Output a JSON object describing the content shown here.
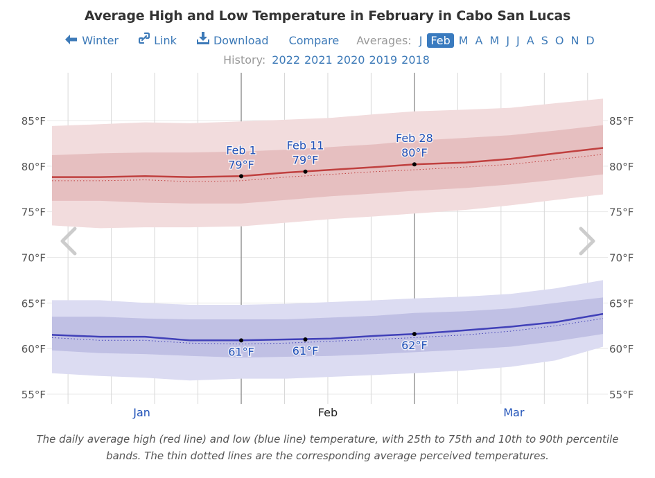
{
  "header": {
    "title": "Average High and Low Temperature in February in Cabo San Lucas"
  },
  "nav": {
    "back_label": "Winter",
    "back_icon": "arrow-left-icon",
    "link_label": "Link",
    "link_icon": "link-icon",
    "download_label": "Download",
    "download_icon": "download-icon",
    "compare_label": "Compare",
    "averages_label": "Averages:",
    "months": [
      "J",
      "Feb",
      "M",
      "A",
      "M",
      "J",
      "J",
      "A",
      "S",
      "O",
      "N",
      "D"
    ],
    "active_month_index": 1
  },
  "history": {
    "label": "History:",
    "years": [
      "2022",
      "2021",
      "2020",
      "2019",
      "2018"
    ]
  },
  "colors": {
    "accent": "#3a7bbf",
    "high_line": "#c0403f",
    "high_band_inner": "#e6bfc0",
    "high_band_outer": "#f2dcdd",
    "low_line": "#4040b8",
    "low_band_inner": "#c0c0e4",
    "low_band_outer": "#dcdcf2",
    "annotation": "#2052b8"
  },
  "chart_data": {
    "type": "area",
    "title": "Average High and Low Temperature in February in Cabo San Lucas",
    "xlabel": "",
    "ylabel": "",
    "x_unit": "days relative to Feb 1",
    "xlim": [
      -29.5,
      56.4
    ],
    "ylim": [
      53.5,
      88.5
    ],
    "y_ticks": [
      55,
      60,
      65,
      70,
      75,
      80,
      85
    ],
    "y_tick_labels": [
      "55°F",
      "60°F",
      "65°F",
      "70°F",
      "75°F",
      "80°F",
      "85°F"
    ],
    "month_labels": [
      {
        "label": "Jan",
        "day": -15.5,
        "highlight": false
      },
      {
        "label": "Feb",
        "day": 13.5,
        "highlight": true
      },
      {
        "label": "Mar",
        "day": 42.5,
        "highlight": false
      }
    ],
    "month_boundaries": [
      0,
      27
    ],
    "grid": true,
    "x": [
      -29.5,
      -22,
      -15,
      -8,
      0,
      7,
      14,
      21,
      27,
      35,
      42,
      49,
      56.4
    ],
    "series": [
      {
        "name": "High p90",
        "values": [
          84.4,
          84.6,
          84.8,
          84.7,
          84.9,
          85.1,
          85.3,
          85.7,
          86.0,
          86.2,
          86.4,
          86.9,
          87.4
        ]
      },
      {
        "name": "High p75",
        "values": [
          81.2,
          81.4,
          81.5,
          81.5,
          81.6,
          81.8,
          82.1,
          82.4,
          82.8,
          83.1,
          83.4,
          83.9,
          84.5
        ]
      },
      {
        "name": "Average High",
        "values": [
          78.8,
          78.8,
          78.9,
          78.8,
          78.9,
          79.3,
          79.6,
          79.9,
          80.2,
          80.4,
          80.8,
          81.4,
          82.0
        ]
      },
      {
        "name": "Perceived High",
        "values": [
          78.4,
          78.4,
          78.5,
          78.3,
          78.4,
          78.8,
          79.1,
          79.4,
          79.6,
          79.9,
          80.2,
          80.7,
          81.3
        ]
      },
      {
        "name": "High p25",
        "values": [
          76.2,
          76.2,
          76.0,
          75.9,
          75.9,
          76.3,
          76.7,
          77.0,
          77.3,
          77.6,
          78.0,
          78.5,
          79.1
        ]
      },
      {
        "name": "High p10",
        "values": [
          73.5,
          73.2,
          73.3,
          73.3,
          73.4,
          73.8,
          74.2,
          74.5,
          74.8,
          75.2,
          75.7,
          76.3,
          76.9
        ]
      },
      {
        "name": "Low p90",
        "values": [
          65.3,
          65.3,
          65.0,
          64.8,
          64.8,
          64.9,
          65.1,
          65.3,
          65.5,
          65.7,
          66.0,
          66.6,
          67.5
        ]
      },
      {
        "name": "Low p75",
        "values": [
          63.5,
          63.5,
          63.3,
          63.2,
          63.2,
          63.2,
          63.4,
          63.6,
          63.9,
          64.1,
          64.4,
          65.0,
          65.6
        ]
      },
      {
        "name": "Average Low",
        "values": [
          61.5,
          61.3,
          61.3,
          60.9,
          60.9,
          61.0,
          61.1,
          61.4,
          61.6,
          62.0,
          62.4,
          62.9,
          63.8
        ]
      },
      {
        "name": "Perceived Low",
        "values": [
          61.2,
          60.9,
          60.9,
          60.6,
          60.5,
          60.6,
          60.8,
          61.0,
          61.2,
          61.5,
          61.9,
          62.5,
          63.3
        ]
      },
      {
        "name": "Low p25",
        "values": [
          59.8,
          59.5,
          59.4,
          59.2,
          59.0,
          59.1,
          59.2,
          59.4,
          59.6,
          59.9,
          60.2,
          60.8,
          61.6
        ]
      },
      {
        "name": "Low p10",
        "values": [
          57.3,
          57.0,
          56.8,
          56.5,
          56.7,
          56.7,
          56.9,
          57.1,
          57.3,
          57.6,
          58.0,
          58.7,
          60.2
        ]
      }
    ],
    "annotations": [
      {
        "date": "Feb 1",
        "day": 0,
        "series": "Average High",
        "value": 78.9,
        "label_date": "Feb 1",
        "label_value": "79°F",
        "position": "above"
      },
      {
        "date": "Feb 11",
        "day": 10,
        "series": "Average High",
        "value": 79.4,
        "label_date": "Feb 11",
        "label_value": "79°F",
        "position": "above"
      },
      {
        "date": "Feb 28",
        "day": 27,
        "series": "Average High",
        "value": 80.2,
        "label_date": "Feb 28",
        "label_value": "80°F",
        "position": "above"
      },
      {
        "date": "Feb 1",
        "day": 0,
        "series": "Average Low",
        "value": 60.9,
        "label_value": "61°F",
        "position": "below"
      },
      {
        "date": "Feb 11",
        "day": 10,
        "series": "Average Low",
        "value": 61.0,
        "label_value": "61°F",
        "position": "below"
      },
      {
        "date": "Feb 28",
        "day": 27,
        "series": "Average Low",
        "value": 61.6,
        "label_value": "62°F",
        "position": "below"
      }
    ]
  },
  "controls": {
    "prev_icon": "chevron-left-icon",
    "next_icon": "chevron-right-icon"
  },
  "caption": "The daily average high (red line) and low (blue line) temperature, with 25th to 75th and 10th to 90th percentile bands. The thin dotted lines are the corresponding average perceived temperatures."
}
